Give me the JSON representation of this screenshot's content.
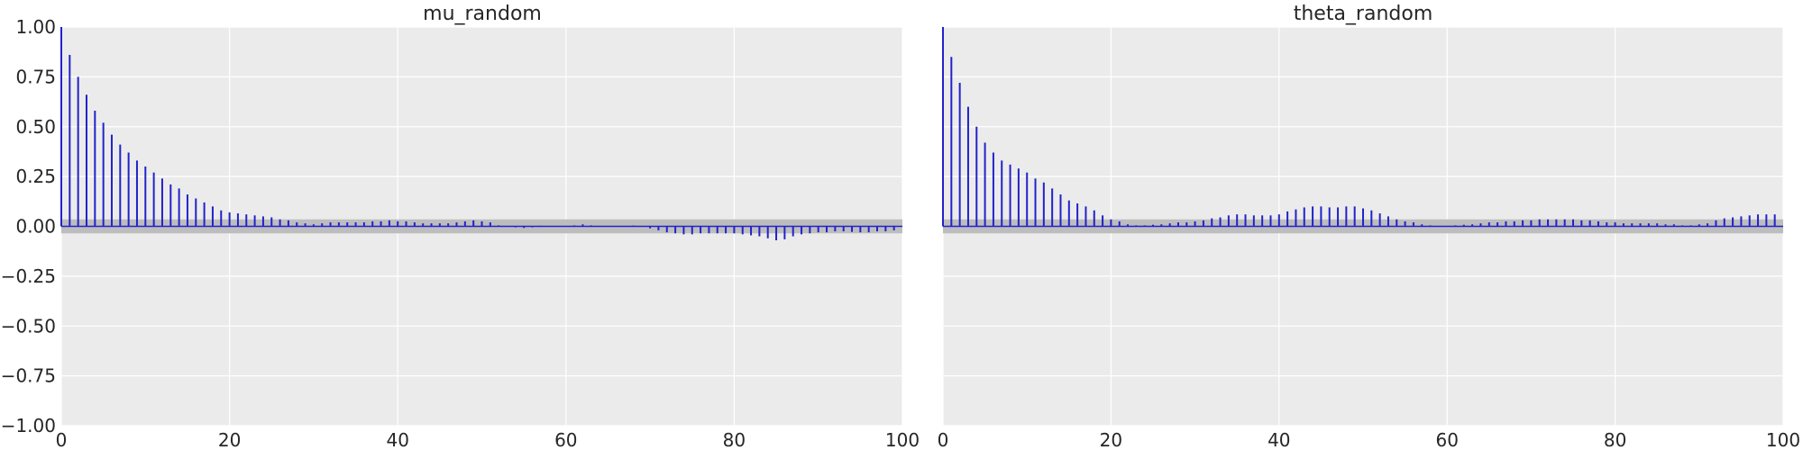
{
  "colors": {
    "background": "#ebebeb",
    "grid": "#ffffff",
    "stem": "#2222cc",
    "band": "#bdbdbd",
    "text": "#262626"
  },
  "chart_data": [
    {
      "type": "bar",
      "title": "mu_random",
      "xlabel": "",
      "ylabel": "",
      "xlim": [
        0,
        100
      ],
      "ylim": [
        -1,
        1
      ],
      "xticks": [
        "0",
        "20",
        "40",
        "60",
        "80",
        "100"
      ],
      "yticks": [
        "1.00",
        "0.75",
        "0.50",
        "0.25",
        "0.00",
        "−0.25",
        "−0.50",
        "−0.75",
        "−1.00"
      ],
      "grid": true,
      "confidence_band": [
        -0.035,
        0.035
      ],
      "lags": [
        0,
        1,
        2,
        3,
        4,
        5,
        6,
        7,
        8,
        9,
        10,
        11,
        12,
        13,
        14,
        15,
        16,
        17,
        18,
        19,
        20,
        21,
        22,
        23,
        24,
        25,
        26,
        27,
        28,
        29,
        30,
        31,
        32,
        33,
        34,
        35,
        36,
        37,
        38,
        39,
        40,
        41,
        42,
        43,
        44,
        45,
        46,
        47,
        48,
        49,
        50,
        51,
        52,
        53,
        54,
        55,
        56,
        57,
        58,
        59,
        60,
        61,
        62,
        63,
        64,
        65,
        66,
        67,
        68,
        69,
        70,
        71,
        72,
        73,
        74,
        75,
        76,
        77,
        78,
        79,
        80,
        81,
        82,
        83,
        84,
        85,
        86,
        87,
        88,
        89,
        90,
        91,
        92,
        93,
        94,
        95,
        96,
        97,
        98,
        99
      ],
      "values": [
        1.0,
        0.86,
        0.75,
        0.66,
        0.58,
        0.52,
        0.46,
        0.41,
        0.37,
        0.33,
        0.3,
        0.27,
        0.24,
        0.21,
        0.19,
        0.16,
        0.14,
        0.12,
        0.1,
        0.08,
        0.07,
        0.065,
        0.06,
        0.055,
        0.05,
        0.045,
        0.035,
        0.03,
        0.02,
        0.015,
        0.01,
        0.015,
        0.02,
        0.02,
        0.02,
        0.02,
        0.02,
        0.025,
        0.025,
        0.03,
        0.025,
        0.025,
        0.02,
        0.015,
        0.015,
        0.015,
        0.015,
        0.02,
        0.025,
        0.03,
        0.025,
        0.02,
        0.005,
        0.0,
        -0.005,
        -0.008,
        -0.005,
        0.003,
        0.0,
        0.0,
        0.0,
        0.005,
        0.01,
        0.005,
        0.002,
        0.0,
        0.0,
        0.0,
        0.004,
        0.0,
        -0.01,
        -0.02,
        -0.03,
        -0.035,
        -0.04,
        -0.04,
        -0.035,
        -0.035,
        -0.035,
        -0.035,
        -0.035,
        -0.04,
        -0.045,
        -0.05,
        -0.06,
        -0.07,
        -0.065,
        -0.05,
        -0.04,
        -0.035,
        -0.03,
        -0.03,
        -0.025,
        -0.025,
        -0.028,
        -0.03,
        -0.03,
        -0.025,
        -0.025,
        -0.02
      ]
    },
    {
      "type": "bar",
      "title": "theta_random",
      "xlabel": "",
      "ylabel": "",
      "xlim": [
        0,
        100
      ],
      "ylim": [
        -1,
        1
      ],
      "xticks": [
        "0",
        "20",
        "40",
        "60",
        "80",
        "100"
      ],
      "yticks": [],
      "grid": true,
      "confidence_band": [
        -0.035,
        0.035
      ],
      "lags": [
        0,
        1,
        2,
        3,
        4,
        5,
        6,
        7,
        8,
        9,
        10,
        11,
        12,
        13,
        14,
        15,
        16,
        17,
        18,
        19,
        20,
        21,
        22,
        23,
        24,
        25,
        26,
        27,
        28,
        29,
        30,
        31,
        32,
        33,
        34,
        35,
        36,
        37,
        38,
        39,
        40,
        41,
        42,
        43,
        44,
        45,
        46,
        47,
        48,
        49,
        50,
        51,
        52,
        53,
        54,
        55,
        56,
        57,
        58,
        59,
        60,
        61,
        62,
        63,
        64,
        65,
        66,
        67,
        68,
        69,
        70,
        71,
        72,
        73,
        74,
        75,
        76,
        77,
        78,
        79,
        80,
        81,
        82,
        83,
        84,
        85,
        86,
        87,
        88,
        89,
        90,
        91,
        92,
        93,
        94,
        95,
        96,
        97,
        98,
        99
      ],
      "values": [
        1.0,
        0.85,
        0.72,
        0.6,
        0.5,
        0.42,
        0.37,
        0.33,
        0.31,
        0.29,
        0.27,
        0.24,
        0.22,
        0.19,
        0.16,
        0.13,
        0.115,
        0.1,
        0.08,
        0.055,
        0.035,
        0.025,
        0.01,
        0.005,
        0.005,
        0.008,
        0.01,
        0.015,
        0.02,
        0.02,
        0.025,
        0.03,
        0.04,
        0.045,
        0.055,
        0.06,
        0.06,
        0.055,
        0.055,
        0.055,
        0.06,
        0.075,
        0.085,
        0.095,
        0.1,
        0.1,
        0.095,
        0.095,
        0.1,
        0.1,
        0.09,
        0.08,
        0.065,
        0.05,
        0.035,
        0.025,
        0.02,
        0.01,
        0.005,
        0.0,
        0.0,
        0.005,
        0.008,
        0.01,
        0.015,
        0.02,
        0.02,
        0.025,
        0.025,
        0.03,
        0.03,
        0.035,
        0.035,
        0.035,
        0.035,
        0.035,
        0.03,
        0.03,
        0.025,
        0.02,
        0.02,
        0.015,
        0.015,
        0.015,
        0.015,
        0.015,
        0.01,
        0.01,
        0.005,
        0.005,
        0.01,
        0.015,
        0.03,
        0.04,
        0.045,
        0.05,
        0.055,
        0.06,
        0.06,
        0.06
      ]
    }
  ]
}
